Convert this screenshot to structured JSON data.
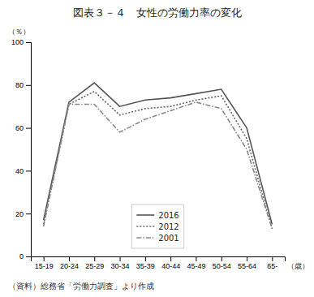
{
  "chart_data": {
    "type": "line",
    "title": "図表３－４　女性の労働力率の変化",
    "source": "（資料）総務省「労働力調査」より作成",
    "xlabel": "（歳）",
    "ylabel": "（％）",
    "categories": [
      "15-19",
      "20-24",
      "25-29",
      "30-34",
      "35-39",
      "40-44",
      "45-49",
      "50-54",
      "55-64",
      "65-"
    ],
    "series": [
      {
        "name": "2016",
        "color": "#555555",
        "line_style": "solid",
        "values": [
          17,
          72,
          81,
          70,
          73,
          74,
          76,
          78,
          60,
          15
        ]
      },
      {
        "name": "2012",
        "color": "#666666",
        "line_style": "dotted",
        "values": [
          15,
          71,
          77,
          66,
          69,
          70,
          73,
          75,
          55,
          13
        ]
      },
      {
        "name": "2001",
        "color": "#888888",
        "line_style": "dashdot",
        "values": [
          14,
          71,
          71,
          58,
          64,
          68,
          72,
          69,
          50,
          13
        ]
      }
    ],
    "ylim": [
      0,
      100
    ],
    "yticks": [
      0,
      20,
      40,
      60,
      80,
      100
    ],
    "grid": false,
    "legend": "bottom"
  }
}
